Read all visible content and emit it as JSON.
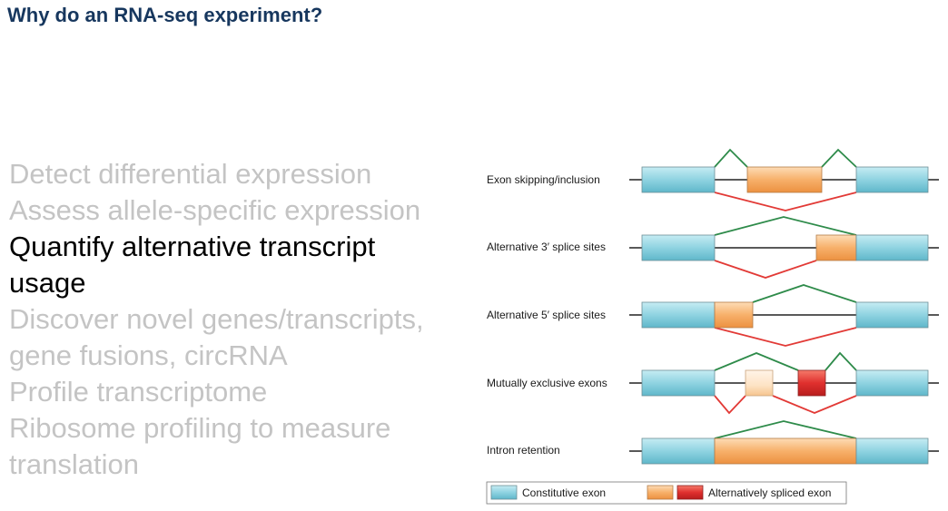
{
  "title": "Why do an RNA-seq experiment?",
  "bullets": [
    {
      "text": "Detect differential expression",
      "active": false
    },
    {
      "text": "Assess allele-specific expression",
      "active": false
    },
    {
      "text": "Quantify alternative transcript",
      "active": true
    },
    {
      "text": "usage",
      "active": true
    },
    {
      "text": "Discover novel genes/transcripts,",
      "active": false
    },
    {
      "text": "gene fusions, circRNA",
      "active": false
    },
    {
      "text": "Profile transcriptome",
      "active": false
    },
    {
      "text": "Ribosome profiling to measure",
      "active": false
    },
    {
      "text": "translation",
      "active": false
    }
  ],
  "diagram": {
    "rows": [
      {
        "label": "Exon skipping/inclusion"
      },
      {
        "label": "Alternative 3′ splice sites"
      },
      {
        "label": "Alternative 5′ splice sites"
      },
      {
        "label": "Mutually exclusive exons"
      },
      {
        "label": "Intron retention"
      }
    ],
    "legend": {
      "constitutive": "Constitutive exon",
      "alternative": "Alternatively spliced exon"
    },
    "colors": {
      "constitutive_exon": "#8fd3e1",
      "alternative_exon": "#f7a55a",
      "exclusive_exon": "#e0302e",
      "inclusion_path": "#2e8b4a",
      "skipping_path": "#e23a36"
    }
  }
}
